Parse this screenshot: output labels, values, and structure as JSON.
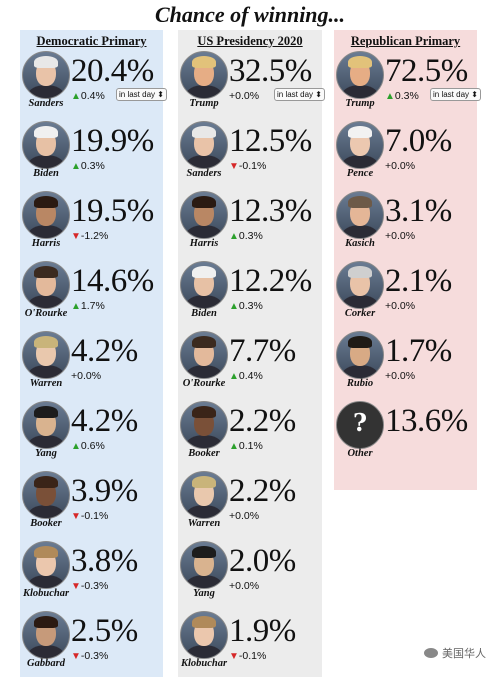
{
  "title": "Chance of winning...",
  "columns": [
    {
      "key": "dem",
      "heading": "Democratic Primary",
      "candidates": [
        {
          "name": "Sanders",
          "pct": "20.4%",
          "dir": "up",
          "change": "0.4%",
          "selector": "in last day ⬍",
          "skin": "#e9c3a8",
          "hair": "#e8e8e8"
        },
        {
          "name": "Biden",
          "pct": "19.9%",
          "dir": "up",
          "change": "0.3%",
          "skin": "#e7c1a5",
          "hair": "#f0f0f0"
        },
        {
          "name": "Harris",
          "pct": "19.5%",
          "dir": "down",
          "change": "-1.2%",
          "skin": "#b98764",
          "hair": "#2a1a12"
        },
        {
          "name": "O'Rourke",
          "pct": "14.6%",
          "dir": "up",
          "change": "1.7%",
          "skin": "#e3b99b",
          "hair": "#3b2a1f"
        },
        {
          "name": "Warren",
          "pct": "4.2%",
          "dir": "flat",
          "change": "+0.0%",
          "skin": "#e9c8ad",
          "hair": "#c9b47a"
        },
        {
          "name": "Yang",
          "pct": "4.2%",
          "dir": "up",
          "change": "0.6%",
          "skin": "#d9b38f",
          "hair": "#1c1c1c"
        },
        {
          "name": "Booker",
          "pct": "3.9%",
          "dir": "down",
          "change": "-0.1%",
          "skin": "#7a5038",
          "hair": "#3a2418"
        },
        {
          "name": "Klobuchar",
          "pct": "3.8%",
          "dir": "down",
          "change": "-0.3%",
          "skin": "#ebc7ad",
          "hair": "#b08a5a"
        },
        {
          "name": "Gabbard",
          "pct": "2.5%",
          "dir": "down",
          "change": "-0.3%",
          "skin": "#c69a7a",
          "hair": "#2b1a12"
        }
      ]
    },
    {
      "key": "us",
      "heading": "US Presidency 2020",
      "candidates": [
        {
          "name": "Trump",
          "pct": "32.5%",
          "dir": "flat",
          "change": "+0.0%",
          "selector": "in last day ⬍",
          "skin": "#e6ad85",
          "hair": "#e2c27a"
        },
        {
          "name": "Sanders",
          "pct": "12.5%",
          "dir": "down",
          "change": "-0.1%",
          "skin": "#e9c3a8",
          "hair": "#e8e8e8"
        },
        {
          "name": "Harris",
          "pct": "12.3%",
          "dir": "up",
          "change": "0.3%",
          "skin": "#b98764",
          "hair": "#2a1a12"
        },
        {
          "name": "Biden",
          "pct": "12.2%",
          "dir": "up",
          "change": "0.3%",
          "skin": "#e7c1a5",
          "hair": "#f0f0f0"
        },
        {
          "name": "O'Rourke",
          "pct": "7.7%",
          "dir": "up",
          "change": "0.4%",
          "skin": "#e3b99b",
          "hair": "#3b2a1f"
        },
        {
          "name": "Booker",
          "pct": "2.2%",
          "dir": "up",
          "change": "0.1%",
          "skin": "#7a5038",
          "hair": "#3a2418"
        },
        {
          "name": "Warren",
          "pct": "2.2%",
          "dir": "flat",
          "change": "+0.0%",
          "skin": "#e9c8ad",
          "hair": "#c9b47a"
        },
        {
          "name": "Yang",
          "pct": "2.0%",
          "dir": "flat",
          "change": "+0.0%",
          "skin": "#d9b38f",
          "hair": "#1c1c1c"
        },
        {
          "name": "Klobuchar",
          "pct": "1.9%",
          "dir": "down",
          "change": "-0.1%",
          "skin": "#ebc7ad",
          "hair": "#b08a5a"
        }
      ]
    },
    {
      "key": "rep",
      "heading": "Republican Primary",
      "candidates": [
        {
          "name": "Trump",
          "pct": "72.5%",
          "dir": "up",
          "change": "0.3%",
          "selector": "in last day ⬍",
          "skin": "#e6ad85",
          "hair": "#e2c27a"
        },
        {
          "name": "Pence",
          "pct": "7.0%",
          "dir": "flat",
          "change": "+0.0%",
          "skin": "#ecc8b0",
          "hair": "#f2f2f2"
        },
        {
          "name": "Kasich",
          "pct": "3.1%",
          "dir": "flat",
          "change": "+0.0%",
          "skin": "#e4b697",
          "hair": "#6d5a48"
        },
        {
          "name": "Corker",
          "pct": "2.1%",
          "dir": "flat",
          "change": "+0.0%",
          "skin": "#e9c3a8",
          "hair": "#cfcfcf"
        },
        {
          "name": "Rubio",
          "pct": "1.7%",
          "dir": "flat",
          "change": "+0.0%",
          "skin": "#d8aa85",
          "hair": "#1f1a16"
        },
        {
          "name": "Other",
          "pct": "13.6%",
          "dir": "none",
          "change": "",
          "question": "?"
        }
      ]
    }
  ],
  "watermark": "美国华人",
  "colors": {
    "up": "#2ca02c",
    "down": "#d62728",
    "dem_bg": "#dce9f7",
    "us_bg": "#ececec",
    "rep_bg": "#f6dcdc"
  }
}
